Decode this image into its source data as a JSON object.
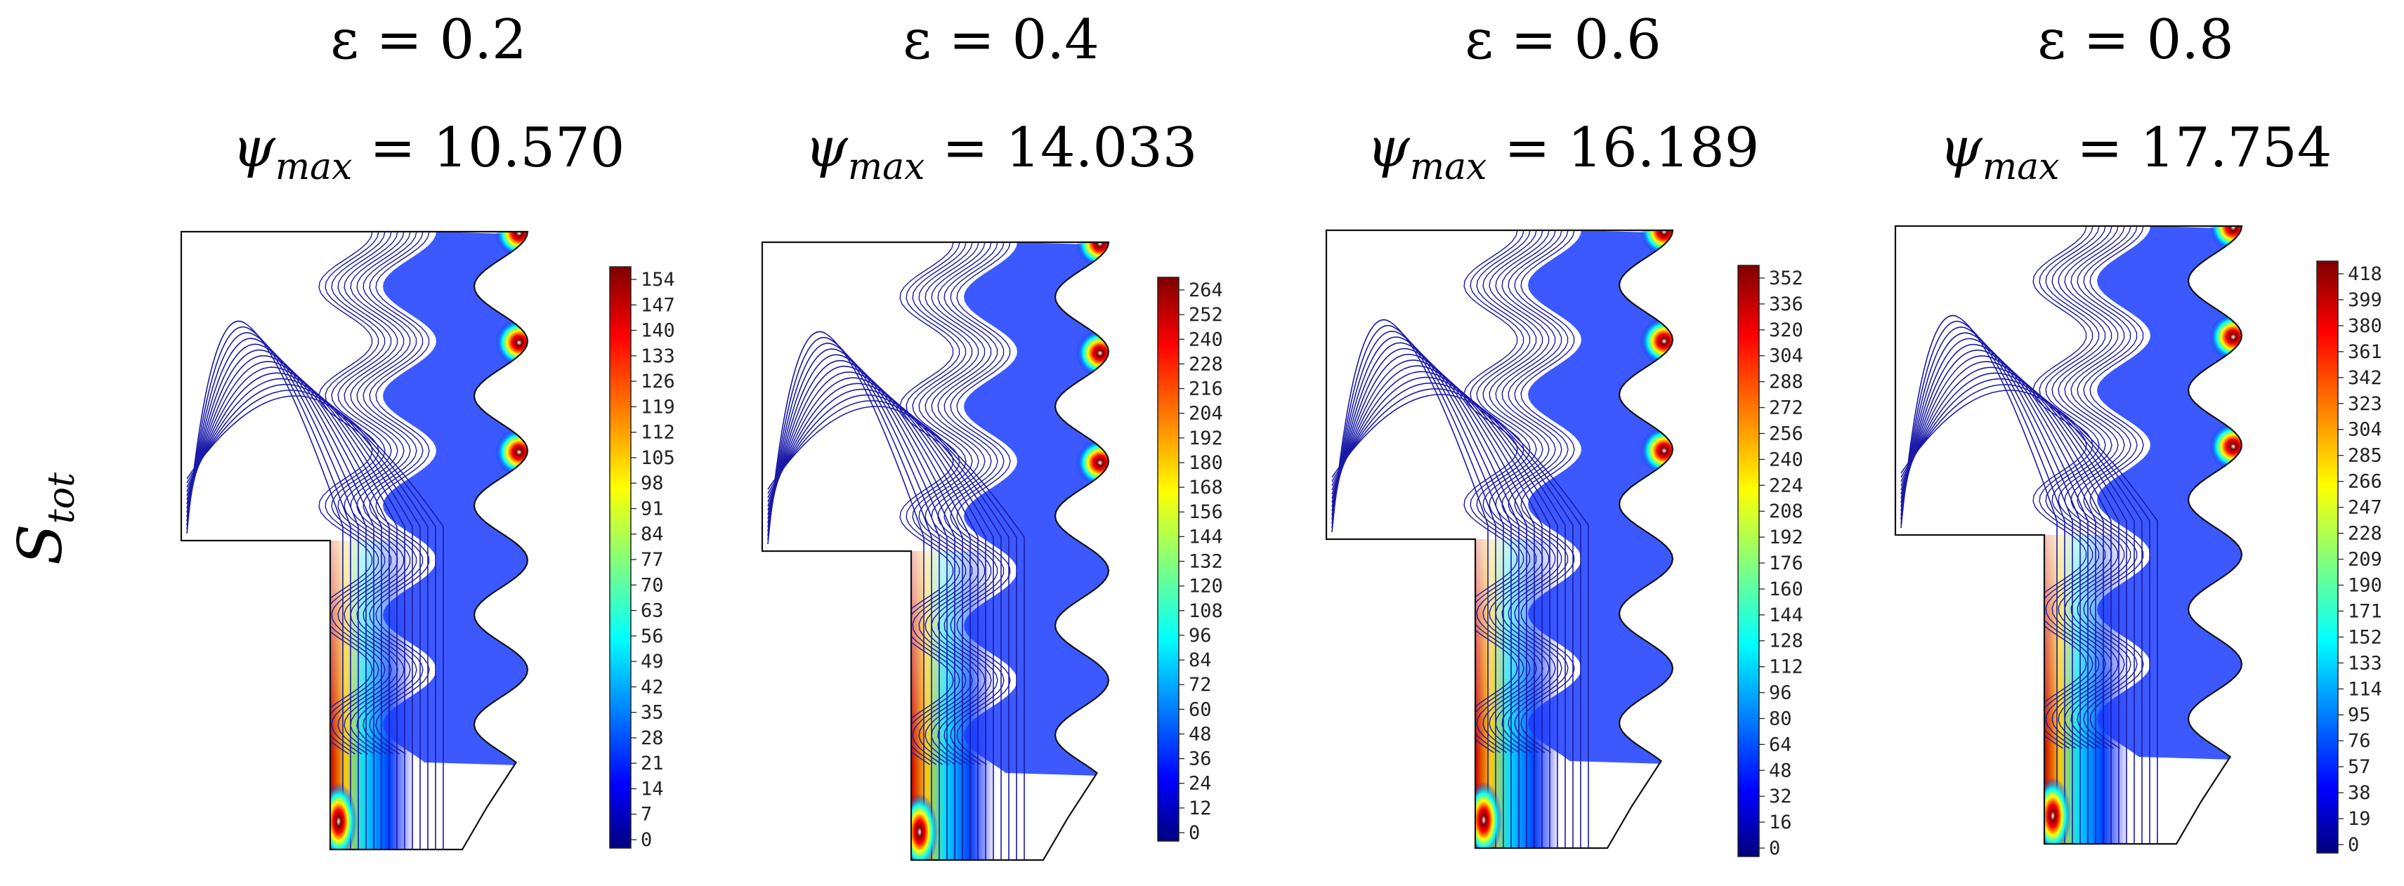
{
  "row_label": {
    "base": "S",
    "sub": "tot"
  },
  "panels": [
    {
      "id": "p1",
      "eps_label": "ε = 0.2",
      "psi_label": "= 10.570",
      "psi_symbol": "ψ",
      "psi_sub": "max",
      "colorbar_ticks": [
        "154",
        "147",
        "140",
        "133",
        "126",
        "119",
        "112",
        "105",
        "98",
        "91",
        "84",
        "77",
        "70",
        "63",
        "56",
        "49",
        "42",
        "35",
        "28",
        "21",
        "14",
        "7",
        "0"
      ]
    },
    {
      "id": "p2",
      "eps_label": "ε = 0.4",
      "psi_label": "= 14.033",
      "psi_symbol": "ψ",
      "psi_sub": "max",
      "colorbar_ticks": [
        "264",
        "252",
        "240",
        "228",
        "216",
        "204",
        "192",
        "180",
        "168",
        "156",
        "144",
        "132",
        "120",
        "108",
        "96",
        "84",
        "72",
        "60",
        "48",
        "36",
        "24",
        "12",
        "0"
      ]
    },
    {
      "id": "p3",
      "eps_label": "ε = 0.6",
      "psi_label": "= 16.189",
      "psi_symbol": "ψ",
      "psi_sub": "max",
      "colorbar_ticks": [
        "352",
        "336",
        "320",
        "304",
        "288",
        "272",
        "256",
        "240",
        "224",
        "208",
        "192",
        "176",
        "160",
        "144",
        "128",
        "112",
        "96",
        "80",
        "64",
        "48",
        "32",
        "16",
        "0"
      ]
    },
    {
      "id": "p4",
      "eps_label": "ε = 0.8",
      "psi_label": "= 17.754",
      "psi_symbol": "ψ",
      "psi_sub": "max",
      "colorbar_ticks": [
        "418",
        "399",
        "380",
        "361",
        "342",
        "323",
        "304",
        "285",
        "266",
        "247",
        "228",
        "209",
        "190",
        "171",
        "152",
        "133",
        "114",
        "95",
        "76",
        "57",
        "38",
        "19",
        "0"
      ]
    }
  ],
  "colors": {
    "contour": "#1a1aa8",
    "outline": "#111111",
    "jet_low": "#00007f",
    "jet_high": "#7f0000"
  }
}
